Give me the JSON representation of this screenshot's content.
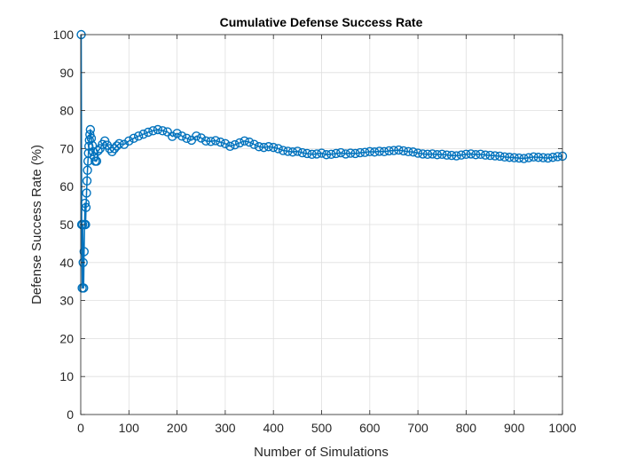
{
  "chart_data": {
    "type": "line",
    "title": "Cumulative Defense Success Rate",
    "xlabel": "Number of Simulations",
    "ylabel": "Defense Success Rate (%)",
    "xlim": [
      0,
      1000
    ],
    "ylim": [
      0,
      100
    ],
    "xticks": [
      "0",
      "100",
      "200",
      "300",
      "400",
      "500",
      "600",
      "700",
      "800",
      "900",
      "1000"
    ],
    "yticks": [
      "0",
      "10",
      "20",
      "30",
      "40",
      "50",
      "60",
      "70",
      "80",
      "90",
      "100"
    ],
    "grid": true,
    "marker": "circle",
    "series": [
      {
        "color": "#0072BD",
        "x": [
          1,
          2,
          3,
          4,
          5,
          6,
          7,
          8,
          9,
          10,
          11,
          12,
          13,
          14,
          15,
          16,
          17,
          18,
          19,
          20,
          22,
          24,
          26,
          28,
          30,
          33,
          36,
          40,
          45,
          50,
          55,
          60,
          65,
          70,
          75,
          80,
          90,
          100,
          110,
          120,
          130,
          140,
          150,
          160,
          170,
          180,
          190,
          200,
          210,
          220,
          230,
          240,
          250,
          260,
          270,
          280,
          290,
          300,
          310,
          320,
          330,
          340,
          350,
          360,
          370,
          380,
          390,
          400,
          410,
          420,
          430,
          440,
          450,
          460,
          470,
          480,
          490,
          500,
          510,
          520,
          530,
          540,
          550,
          560,
          570,
          580,
          590,
          600,
          610,
          620,
          630,
          640,
          650,
          660,
          670,
          680,
          690,
          700,
          710,
          720,
          730,
          740,
          750,
          760,
          770,
          780,
          790,
          800,
          810,
          820,
          830,
          840,
          850,
          860,
          870,
          880,
          890,
          900,
          910,
          920,
          930,
          940,
          950,
          960,
          970,
          980,
          990,
          1000
        ],
        "values": [
          100,
          50,
          33.3,
          50,
          40,
          33.3,
          42.9,
          50,
          55.6,
          50,
          54.5,
          58.3,
          61.5,
          64.3,
          66.7,
          68.8,
          70.6,
          72.2,
          73.7,
          75,
          72.7,
          70.8,
          69.2,
          67.9,
          66.7,
          66.7,
          69.4,
          70,
          71.1,
          72,
          70.9,
          70,
          69.2,
          70,
          70.7,
          71.3,
          71.1,
          72,
          72.7,
          73.3,
          73.8,
          74.3,
          74.7,
          75,
          74.7,
          74.4,
          73.2,
          74,
          73.3,
          72.7,
          72.2,
          73.3,
          72.8,
          72,
          71.9,
          72.1,
          71.7,
          71.3,
          70.6,
          71,
          71.5,
          72,
          71.7,
          71.1,
          70.5,
          70.3,
          70.5,
          70.3,
          70,
          69.5,
          69.3,
          69.1,
          69.3,
          68.9,
          68.7,
          68.5,
          68.6,
          68.8,
          68.4,
          68.5,
          68.7,
          68.9,
          68.6,
          68.8,
          68.7,
          68.9,
          69,
          69.2,
          69.1,
          69.3,
          69.2,
          69.4,
          69.5,
          69.6,
          69.4,
          69.2,
          69.1,
          68.8,
          68.6,
          68.5,
          68.6,
          68.4,
          68.5,
          68.3,
          68.2,
          68.1,
          68.3,
          68.5,
          68.6,
          68.4,
          68.5,
          68.3,
          68.2,
          68.1,
          68,
          67.8,
          67.7,
          67.6,
          67.5,
          67.4,
          67.6,
          67.8,
          67.7,
          67.6,
          67.5,
          67.7,
          67.9,
          68
        ]
      }
    ]
  }
}
